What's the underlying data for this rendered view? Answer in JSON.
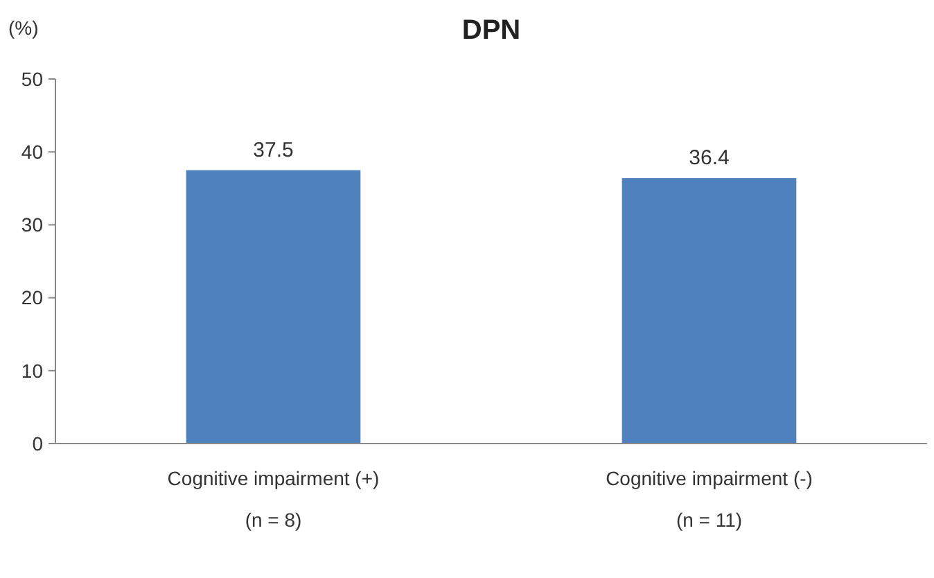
{
  "chart_data": {
    "type": "bar",
    "title": "DPN",
    "ylabel": "(%)",
    "categories": [
      "Cognitive impairment (+)\n(n = 8)",
      "Cognitive impairment (-)\n(n = 11)"
    ],
    "values": [
      37.5,
      36.4
    ],
    "color": "#4f81bd",
    "ylim": [
      0,
      50
    ],
    "yticks": [
      0,
      10,
      20,
      30,
      40,
      50
    ],
    "grid": false,
    "data_labels": true
  }
}
